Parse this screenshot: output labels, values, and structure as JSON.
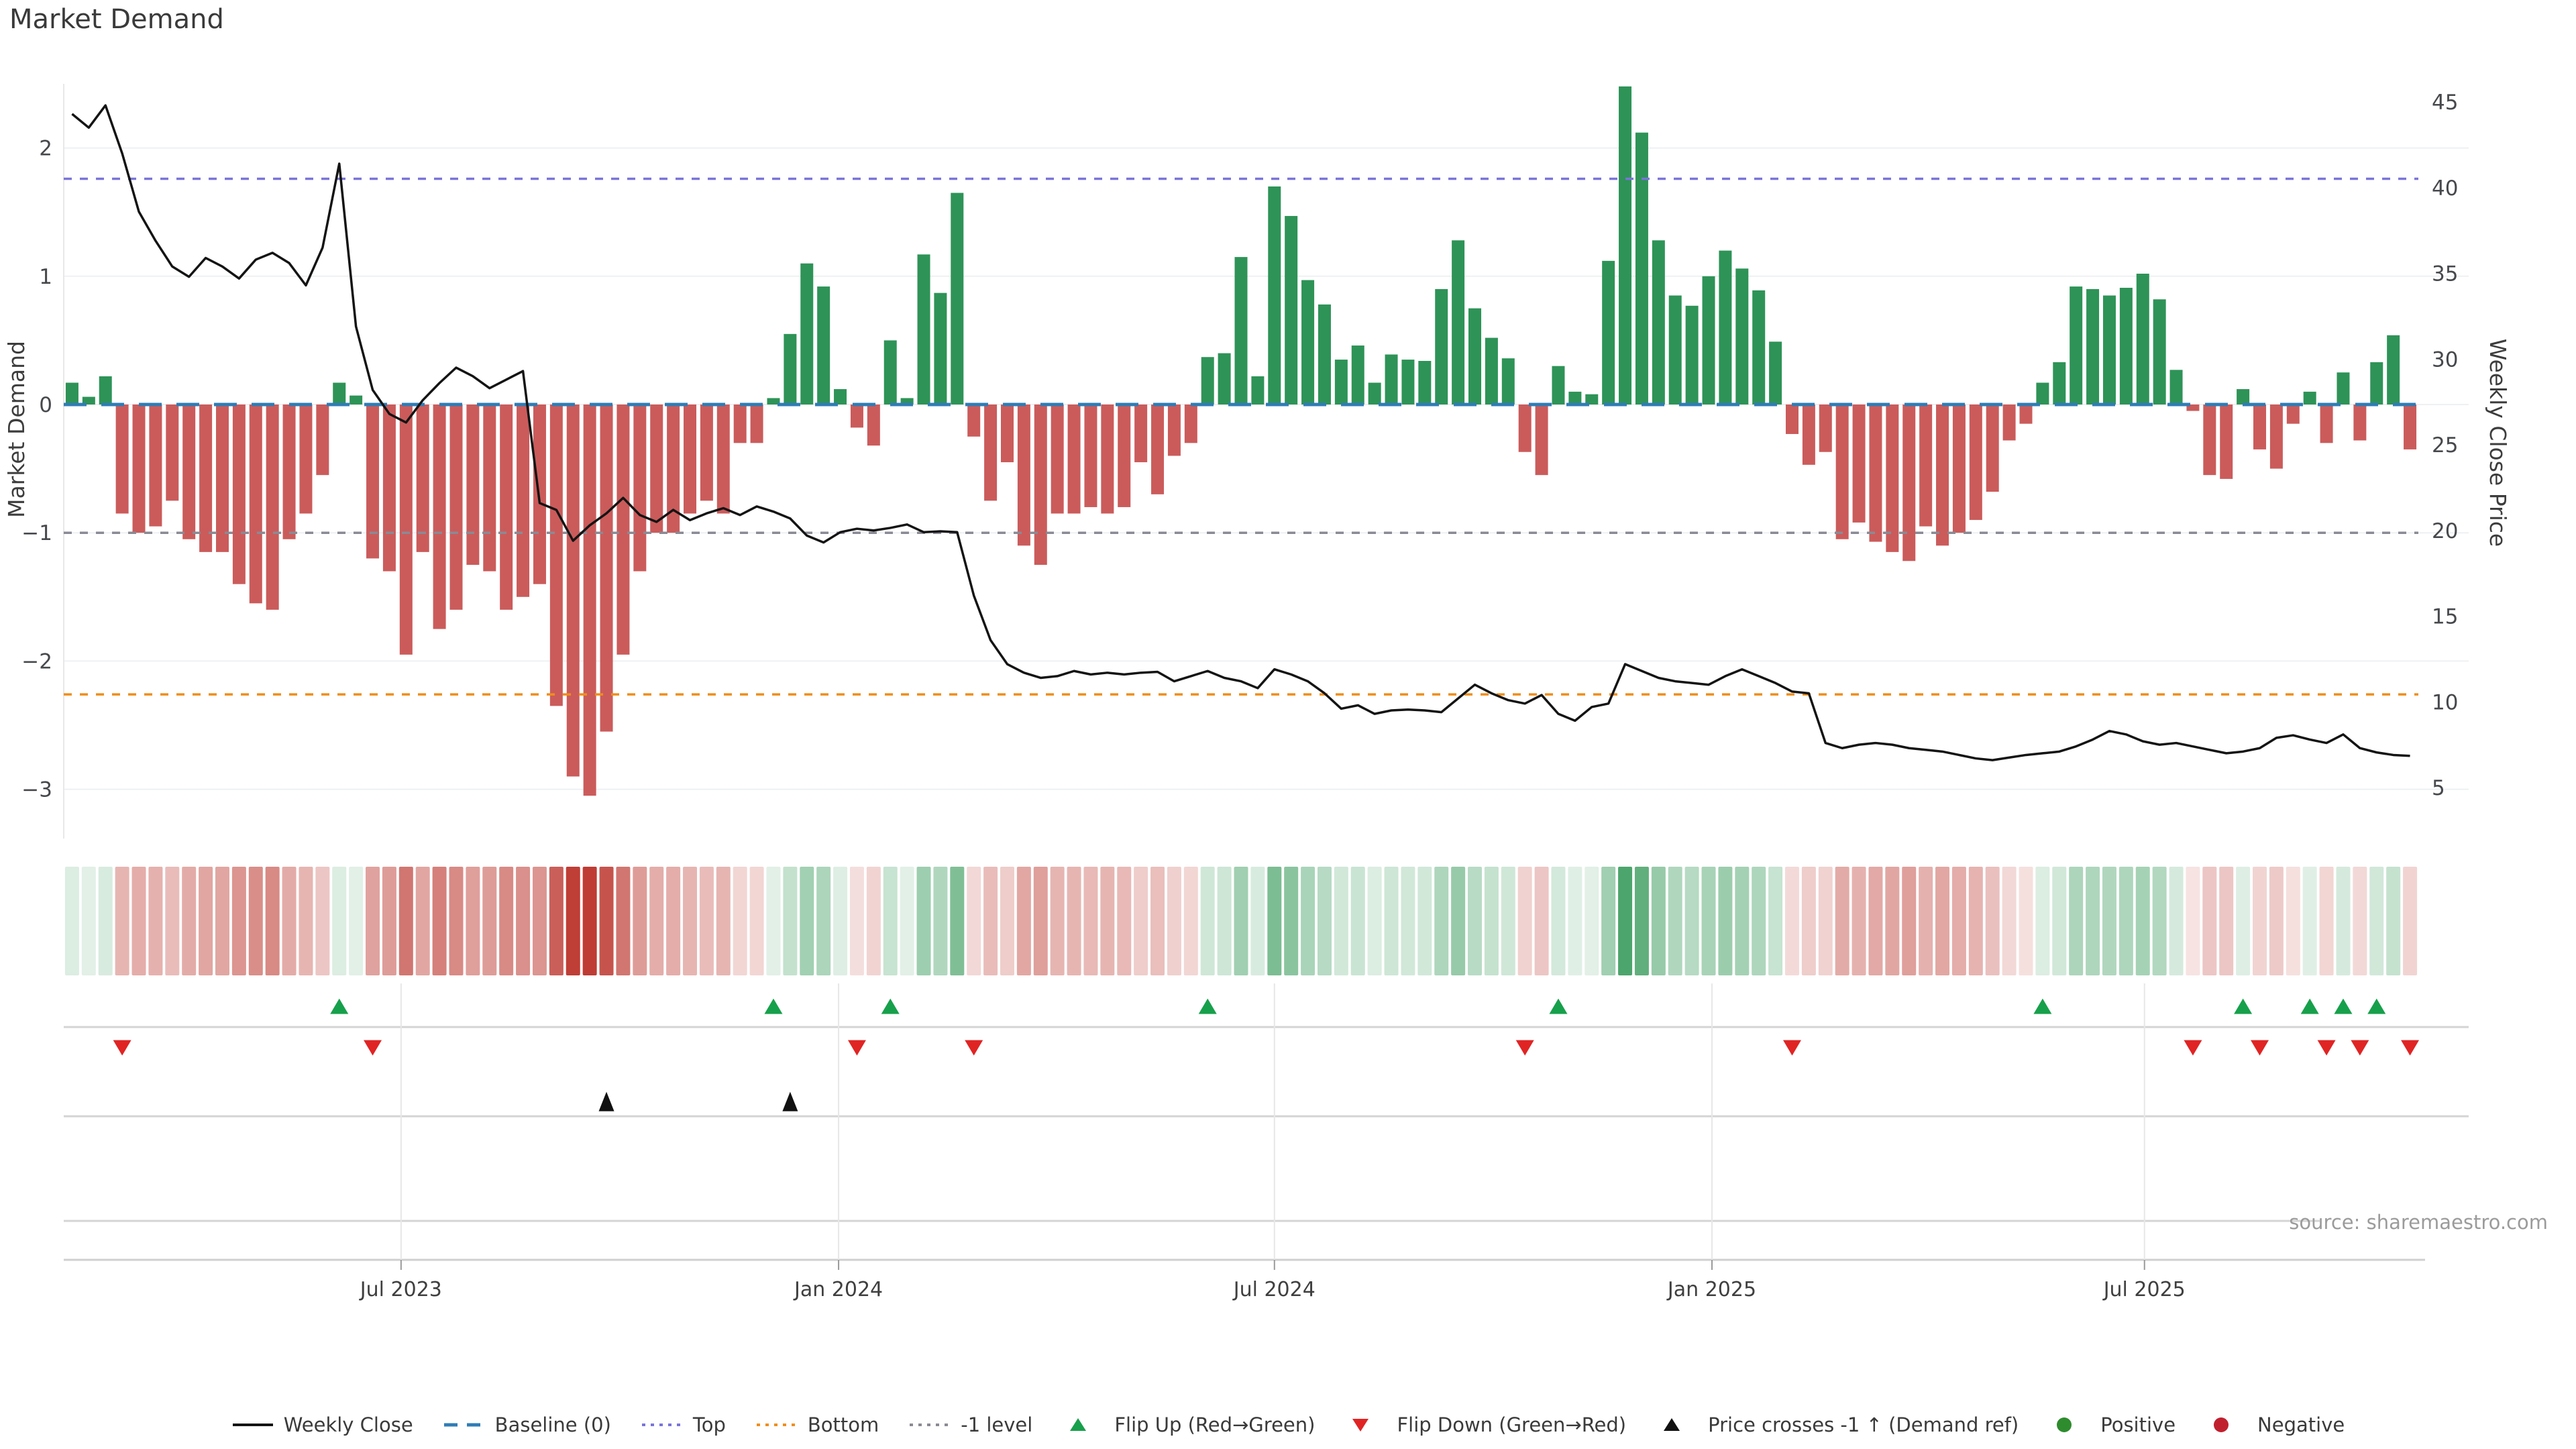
{
  "title": "Market Demand",
  "source": "source: sharemaestro.com",
  "left_axis": {
    "title": "Market Demand",
    "ticks": [
      "2",
      "1",
      "0",
      "−1",
      "−2",
      "−3"
    ],
    "tick_values": [
      2,
      1,
      0,
      -1,
      -2,
      -3
    ]
  },
  "right_axis": {
    "title": "Weekly Close Price",
    "ticks": [
      "45",
      "40",
      "35",
      "30",
      "25",
      "20",
      "15",
      "10",
      "5"
    ],
    "tick_values": [
      45,
      40,
      35,
      30,
      25,
      20,
      15,
      10,
      5
    ]
  },
  "x_axis": {
    "labels": [
      "Jul 2023",
      "Jan 2024",
      "Jul 2024",
      "Jan 2025",
      "Jul 2025"
    ],
    "label_weeks": [
      19.7,
      45.9,
      72.0,
      98.2,
      124.1
    ]
  },
  "legend": {
    "items": [
      {
        "label": "Weekly Close",
        "swatch": "line",
        "color": "#141414"
      },
      {
        "label": "Baseline (0)",
        "swatch": "dash",
        "color": "#2f7cb6"
      },
      {
        "label": "Top",
        "swatch": "dots",
        "color": "#7a74da"
      },
      {
        "label": "Bottom",
        "swatch": "dots",
        "color": "#ef8e1b"
      },
      {
        "label": "-1 level",
        "swatch": "dots",
        "color": "#8a8a94"
      },
      {
        "label": "Flip Up (Red→Green)",
        "swatch": "tri-up",
        "color": "#17a04b"
      },
      {
        "label": "Flip Down (Green→Red)",
        "swatch": "tri-down",
        "color": "#e02424"
      },
      {
        "label": "Price crosses -1 ↑ (Demand ref)",
        "swatch": "tri-up",
        "color": "#111111"
      },
      {
        "label": "Positive",
        "swatch": "circle",
        "color": "#2e8b2e"
      },
      {
        "label": "Negative",
        "swatch": "circle",
        "color": "#c0202e"
      }
    ]
  },
  "colors": {
    "positive_bar": "#2e9357",
    "negative_bar": "#cb5b5b",
    "price_line": "#141414",
    "baseline": "#2f7cb6",
    "top_line": "#7a74da",
    "bottom_line": "#ef8e1b",
    "minus_one_line": "#8a8a94",
    "flip_up": "#17a04b",
    "flip_down": "#e02424",
    "price_cross": "#111111",
    "grid": "#eef0f3",
    "band_line": "#d4d4d4",
    "heat_green_rgb": "47,150,84",
    "heat_red_rgb": "190,60,52"
  },
  "chart_data": {
    "type": "bar+line",
    "x_unit": "week",
    "n_weeks": 141,
    "series": [
      {
        "name": "Market Demand",
        "type": "bar",
        "axis": "left",
        "values": [
          0.17,
          0.06,
          0.22,
          -0.85,
          -1.0,
          -0.95,
          -0.75,
          -1.05,
          -1.15,
          -1.15,
          -1.4,
          -1.55,
          -1.6,
          -1.05,
          -0.85,
          -0.55,
          0.17,
          0.07,
          -1.2,
          -1.3,
          -1.95,
          -1.15,
          -1.75,
          -1.6,
          -1.25,
          -1.3,
          -1.6,
          -1.5,
          -1.4,
          -2.35,
          -2.9,
          -3.05,
          -2.55,
          -1.95,
          -1.3,
          -1.0,
          -1.0,
          -0.85,
          -0.75,
          -0.85,
          -0.3,
          -0.3,
          0.05,
          0.55,
          1.1,
          0.92,
          0.12,
          -0.18,
          -0.32,
          0.5,
          0.05,
          1.17,
          0.87,
          1.65,
          -0.25,
          -0.75,
          -0.45,
          -1.1,
          -1.25,
          -0.85,
          -0.85,
          -0.8,
          -0.85,
          -0.8,
          -0.45,
          -0.7,
          -0.4,
          -0.3,
          0.37,
          0.4,
          1.15,
          0.22,
          1.7,
          1.47,
          0.97,
          0.78,
          0.35,
          0.46,
          0.17,
          0.39,
          0.35,
          0.34,
          0.9,
          1.28,
          0.75,
          0.52,
          0.36,
          -0.37,
          -0.55,
          0.3,
          0.1,
          0.08,
          1.12,
          2.48,
          2.12,
          1.28,
          0.85,
          0.77,
          1.0,
          1.2,
          1.06,
          0.89,
          0.49,
          -0.23,
          -0.47,
          -0.37,
          -1.05,
          -0.92,
          -1.07,
          -1.15,
          -1.22,
          -0.95,
          -1.1,
          -1.0,
          -0.9,
          -0.68,
          -0.28,
          -0.15,
          0.17,
          0.33,
          0.92,
          0.9,
          0.85,
          0.91,
          1.02,
          0.82,
          0.27,
          -0.05,
          -0.55,
          -0.58,
          0.12,
          -0.35,
          -0.5,
          -0.15,
          0.1,
          -0.3,
          0.25,
          -0.28,
          0.33,
          0.54,
          -0.35
        ]
      },
      {
        "name": "Weekly Close",
        "type": "line",
        "axis": "right",
        "values": [
          44.3,
          43.5,
          44.8,
          42.0,
          38.6,
          36.9,
          35.4,
          34.8,
          35.9,
          35.4,
          34.7,
          35.8,
          36.2,
          35.6,
          34.3,
          36.5,
          41.4,
          31.9,
          28.2,
          26.8,
          26.3,
          27.6,
          28.6,
          29.5,
          29.0,
          28.3,
          28.8,
          29.3,
          21.6,
          21.2,
          19.4,
          20.3,
          21.0,
          21.9,
          20.9,
          20.5,
          21.2,
          20.6,
          21.0,
          21.3,
          20.9,
          21.4,
          21.1,
          20.7,
          19.7,
          19.3,
          19.9,
          20.1,
          20.0,
          20.15,
          20.35,
          19.9,
          19.95,
          19.9,
          16.2,
          13.6,
          12.2,
          11.7,
          11.4,
          11.5,
          11.8,
          11.6,
          11.7,
          11.6,
          11.7,
          11.75,
          11.2,
          11.5,
          11.8,
          11.4,
          11.2,
          10.8,
          11.9,
          11.6,
          11.2,
          10.5,
          9.6,
          9.8,
          9.3,
          9.5,
          9.55,
          9.5,
          9.4,
          10.2,
          11.0,
          10.5,
          10.1,
          9.9,
          10.4,
          9.3,
          8.9,
          9.7,
          9.9,
          12.2,
          11.8,
          11.4,
          11.2,
          11.1,
          11.0,
          11.5,
          11.9,
          11.5,
          11.1,
          10.6,
          10.5,
          7.6,
          7.3,
          7.5,
          7.6,
          7.5,
          7.3,
          7.2,
          7.1,
          6.9,
          6.7,
          6.6,
          6.75,
          6.9,
          7.0,
          7.1,
          7.4,
          7.8,
          8.3,
          8.1,
          7.7,
          7.5,
          7.6,
          7.4,
          7.2,
          7.0,
          7.1,
          7.3,
          7.9,
          8.05,
          7.8,
          7.6,
          8.1,
          7.3,
          7.05,
          6.9,
          6.85
        ]
      }
    ],
    "reference_lines": {
      "baseline": 0,
      "top": 1.76,
      "bottom": -2.26,
      "minus_one": -1
    },
    "markers": {
      "price_cross_weeks": [
        32,
        43
      ]
    },
    "axes_ranges": {
      "demand": [
        -3.3,
        2.55
      ],
      "price": [
        5,
        45
      ]
    },
    "heatmap": "per-week demand intensity (green positive, red negative)"
  }
}
